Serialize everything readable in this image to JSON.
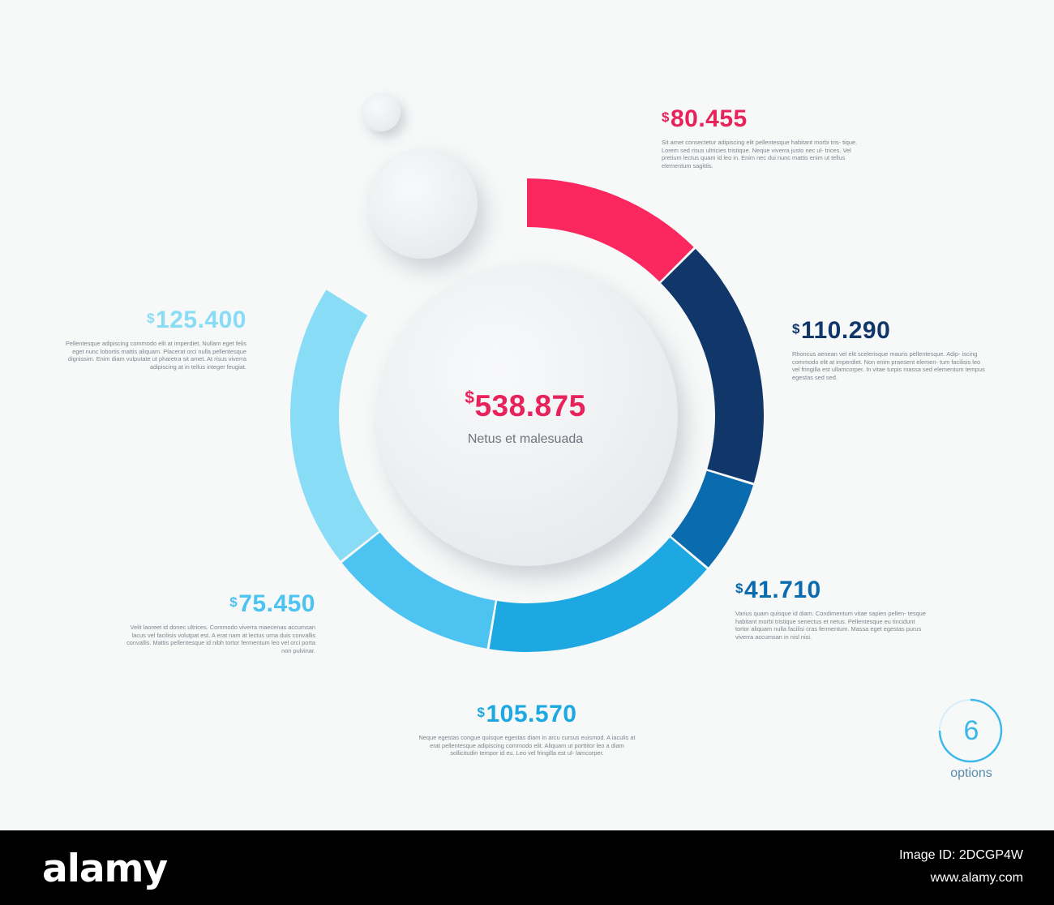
{
  "chart_data": {
    "type": "donut",
    "total": {
      "value": "538.875",
      "currency": "$",
      "caption": "Netus et malesuada"
    },
    "segments": [
      {
        "value": 80.455,
        "label": "80.455",
        "currency": "$",
        "color": "#fb2860",
        "text": "Sit amet consectetur adipiscing elit pellentesque habitant morbi tris- tique. Lorem sed risus ultricies tristique. Neque viverra justo nec ul- trices. Vel pretium lectus quam id leo in. Enim nec dui nunc mattis enim ut tellus elementum sagittis."
      },
      {
        "value": 110.29,
        "label": "110.290",
        "currency": "$",
        "color": "#10366a",
        "text": "Rhoncus aenean vel elit scelerisque mauris pellentesque. Adip- iscing commodo elit at imperdiet. Non enim praesent elemen- tum facilisis leo vel fringilla est ullamcorper. In vitae turpis massa sed elementum tempus egestas sed sed."
      },
      {
        "value": 41.71,
        "label": "41.710",
        "currency": "$",
        "color": "#0a6bae",
        "text": "Varius quam quisque id diam. Condimentum vitae sapien pellen- tesque habitant morbi tristique senectus et netus. Pellentesque eu tincidunt tortor aliquam nulla facilisi cras fermentum. Massa eget egestas purus viverra accumsan in nisl nisi."
      },
      {
        "value": 105.57,
        "label": "105.570",
        "currency": "$",
        "color": "#1ea8e2",
        "text": "Neque egestas congue quisque egestas diam in arcu cursus euismod. A iaculis at erat pellentesque adipiscing commodo elit. Aliquam ut porttitor leo a diam sollicitudin tempor id eu. Leo vel fringilla est ul- lamcorper."
      },
      {
        "value": 75.45,
        "label": "75.450",
        "currency": "$",
        "color": "#4dc3f2",
        "text": "Velit laoreet id donec ultrices. Commodo viverra maecenas accumsan lacus vel facilisis volutpat est. A erat nam at lectus urna duis convallis convallis. Mattis pellentesque id nibh tortor fermentum leo vel orci porta non pulvinar."
      },
      {
        "value": 125.4,
        "label": "125.400",
        "currency": "$",
        "color": "#88dcf6",
        "text": "Pellentesque adipiscing commodo elit at imperdiet. Nullam eget felis eget nunc lobortis mattis aliquam. Placerat orci nulla pellentesque dignissim. Enim diam vulputate ut pharetra sit amet. At risus viverra adipiscing at in tellus integer feugiat."
      }
    ]
  },
  "options": {
    "count": "6",
    "label": "options",
    "color": "#3ab8ea"
  },
  "footer": {
    "logo": "alamy",
    "image_id": "Image ID: 2DCGP4W",
    "url": "www.alamy.com"
  }
}
